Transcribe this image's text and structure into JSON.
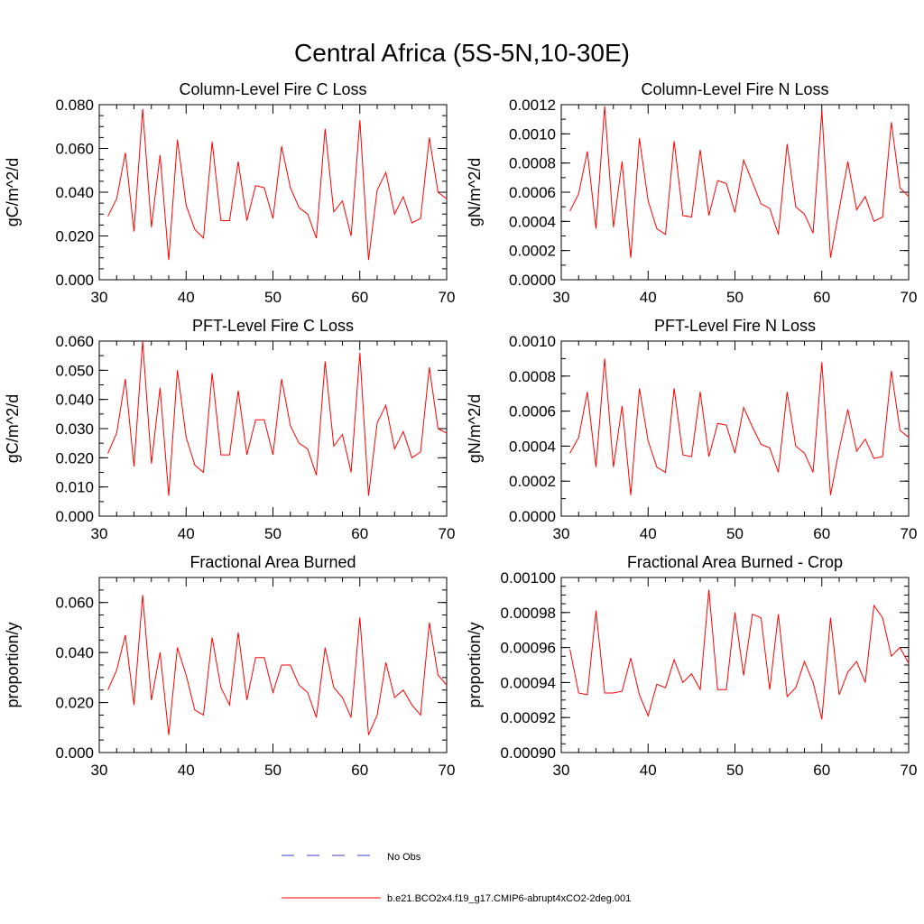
{
  "figure_title": "Central Africa (5S-5N,10-30E)",
  "legend": {
    "obs_label": "No Obs",
    "obs_color": "#3b3bd9",
    "model_label": "b.e21.BCO2x4.f19_g17.CMIP6-abrupt4xCO2-2deg.001",
    "model_color": "#ff0000"
  },
  "chart_data": [
    {
      "type": "line",
      "title": "Column-Level Fire C Loss",
      "ylabel": "gC/m^2/d",
      "xlim": [
        30,
        70
      ],
      "ylim": [
        0,
        0.08
      ],
      "ytick_step": 0.02,
      "yminor_step": 0.005,
      "ytick_decimals": 3,
      "xticks": [
        30,
        40,
        50,
        60,
        70
      ],
      "ytick_labels": [
        "0.000",
        "0.020",
        "0.040",
        "0.060",
        "0.080"
      ],
      "xtick_labels": [
        "30",
        "40",
        "50",
        "60",
        "70"
      ],
      "x": [
        31,
        32,
        33,
        34,
        35,
        36,
        37,
        38,
        39,
        40,
        41,
        42,
        43,
        44,
        45,
        46,
        47,
        48,
        49,
        50,
        51,
        52,
        53,
        54,
        55,
        56,
        57,
        58,
        59,
        60,
        61,
        62,
        63,
        64,
        65,
        66,
        67,
        68,
        69,
        70
      ],
      "values": [
        0.029,
        0.037,
        0.058,
        0.022,
        0.078,
        0.024,
        0.057,
        0.009,
        0.064,
        0.034,
        0.023,
        0.019,
        0.063,
        0.027,
        0.027,
        0.054,
        0.027,
        0.043,
        0.042,
        0.028,
        0.061,
        0.042,
        0.033,
        0.03,
        0.019,
        0.069,
        0.031,
        0.036,
        0.02,
        0.073,
        0.009,
        0.041,
        0.049,
        0.03,
        0.038,
        0.026,
        0.028,
        0.065,
        0.04,
        0.037
      ]
    },
    {
      "type": "line",
      "title": "Column-Level Fire N Loss",
      "ylabel": "gN/m^2/d",
      "xlim": [
        30,
        70
      ],
      "ylim": [
        0,
        0.0012
      ],
      "ytick_step": 0.0002,
      "yminor_step": 0.0001,
      "ytick_decimals": 4,
      "xticks": [
        30,
        40,
        50,
        60,
        70
      ],
      "ytick_labels": [
        "0.0000",
        "0.0002",
        "0.0004",
        "0.0006",
        "0.0008",
        "0.0010",
        "0.0012"
      ],
      "xtick_labels": [
        "30",
        "40",
        "50",
        "60",
        "70"
      ],
      "x": [
        31,
        32,
        33,
        34,
        35,
        36,
        37,
        38,
        39,
        40,
        41,
        42,
        43,
        44,
        45,
        46,
        47,
        48,
        49,
        50,
        51,
        52,
        53,
        54,
        55,
        56,
        57,
        58,
        59,
        60,
        61,
        62,
        63,
        64,
        65,
        66,
        67,
        68,
        69,
        70
      ],
      "values": [
        0.00047,
        0.00059,
        0.00088,
        0.00035,
        0.00119,
        0.00036,
        0.00081,
        0.00015,
        0.00097,
        0.00054,
        0.00035,
        0.00031,
        0.00095,
        0.00044,
        0.00043,
        0.00089,
        0.00044,
        0.00068,
        0.00066,
        0.00046,
        0.00082,
        0.00067,
        0.00052,
        0.00049,
        0.00031,
        0.00093,
        0.0005,
        0.00045,
        0.00032,
        0.00116,
        0.00015,
        0.00048,
        0.00081,
        0.00048,
        0.00057,
        0.0004,
        0.00043,
        0.00108,
        0.00063,
        0.00057
      ]
    },
    {
      "type": "line",
      "title": "PFT-Level Fire C Loss",
      "ylabel": "gC/m^2/d",
      "xlim": [
        30,
        70
      ],
      "ylim": [
        0,
        0.06
      ],
      "ytick_step": 0.01,
      "yminor_step": 0.005,
      "ytick_decimals": 3,
      "xticks": [
        30,
        40,
        50,
        60,
        70
      ],
      "ytick_labels": [
        "0.000",
        "0.010",
        "0.020",
        "0.030",
        "0.040",
        "0.050",
        "0.060"
      ],
      "xtick_labels": [
        "30",
        "40",
        "50",
        "60",
        "70"
      ],
      "x": [
        31,
        32,
        33,
        34,
        35,
        36,
        37,
        38,
        39,
        40,
        41,
        42,
        43,
        44,
        45,
        46,
        47,
        48,
        49,
        50,
        51,
        52,
        53,
        54,
        55,
        56,
        57,
        58,
        59,
        60,
        61,
        62,
        63,
        64,
        65,
        66,
        67,
        68,
        69,
        70
      ],
      "values": [
        0.0215,
        0.0285,
        0.047,
        0.017,
        0.06,
        0.018,
        0.044,
        0.007,
        0.05,
        0.027,
        0.0175,
        0.015,
        0.049,
        0.021,
        0.021,
        0.043,
        0.021,
        0.033,
        0.033,
        0.021,
        0.047,
        0.031,
        0.025,
        0.023,
        0.014,
        0.053,
        0.024,
        0.028,
        0.015,
        0.056,
        0.007,
        0.032,
        0.038,
        0.023,
        0.029,
        0.02,
        0.022,
        0.051,
        0.03,
        0.0285
      ]
    },
    {
      "type": "line",
      "title": "PFT-Level Fire N Loss",
      "ylabel": "gN/m^2/d",
      "xlim": [
        30,
        70
      ],
      "ylim": [
        0,
        0.001
      ],
      "ytick_step": 0.0002,
      "yminor_step": 0.0001,
      "ytick_decimals": 4,
      "xticks": [
        30,
        40,
        50,
        60,
        70
      ],
      "ytick_labels": [
        "0.0000",
        "0.0002",
        "0.0004",
        "0.0006",
        "0.0008",
        "0.0010"
      ],
      "xtick_labels": [
        "30",
        "40",
        "50",
        "60",
        "70"
      ],
      "x": [
        31,
        32,
        33,
        34,
        35,
        36,
        37,
        38,
        39,
        40,
        41,
        42,
        43,
        44,
        45,
        46,
        47,
        48,
        49,
        50,
        51,
        52,
        53,
        54,
        55,
        56,
        57,
        58,
        59,
        60,
        61,
        62,
        63,
        64,
        65,
        66,
        67,
        68,
        69,
        70
      ],
      "values": [
        0.00036,
        0.00045,
        0.00071,
        0.00028,
        0.0009,
        0.00028,
        0.00063,
        0.00012,
        0.00073,
        0.00043,
        0.00028,
        0.00025,
        0.00073,
        0.00035,
        0.00034,
        0.00071,
        0.00034,
        0.00053,
        0.00052,
        0.00036,
        0.00062,
        0.00051,
        0.00041,
        0.00039,
        0.00025,
        0.00071,
        0.0004,
        0.00036,
        0.00025,
        0.00088,
        0.00012,
        0.00038,
        0.00061,
        0.00037,
        0.00044,
        0.00033,
        0.00034,
        0.00083,
        0.00049,
        0.00045
      ]
    },
    {
      "type": "line",
      "title": "Fractional Area Burned",
      "ylabel": "proportion/y",
      "xlim": [
        30,
        70
      ],
      "ylim": [
        0,
        0.07
      ],
      "ytick_step": 0.02,
      "yminor_step": 0.005,
      "ytick_decimals": 3,
      "xticks": [
        30,
        40,
        50,
        60,
        70
      ],
      "ytick_labels": [
        "0.000",
        "0.020",
        "0.040",
        "0.060"
      ],
      "xtick_labels": [
        "30",
        "40",
        "50",
        "60",
        "70"
      ],
      "x": [
        31,
        32,
        33,
        34,
        35,
        36,
        37,
        38,
        39,
        40,
        41,
        42,
        43,
        44,
        45,
        46,
        47,
        48,
        49,
        50,
        51,
        52,
        53,
        54,
        55,
        56,
        57,
        58,
        59,
        60,
        61,
        62,
        63,
        64,
        65,
        66,
        67,
        68,
        69,
        70
      ],
      "values": [
        0.025,
        0.033,
        0.047,
        0.019,
        0.063,
        0.021,
        0.04,
        0.007,
        0.042,
        0.031,
        0.017,
        0.015,
        0.046,
        0.026,
        0.019,
        0.048,
        0.021,
        0.038,
        0.038,
        0.024,
        0.035,
        0.035,
        0.027,
        0.024,
        0.014,
        0.042,
        0.026,
        0.022,
        0.014,
        0.054,
        0.007,
        0.015,
        0.036,
        0.022,
        0.025,
        0.019,
        0.015,
        0.052,
        0.031,
        0.027
      ]
    },
    {
      "type": "line",
      "title": "Fractional Area Burned - Crop",
      "ylabel": "proportion/y",
      "xlim": [
        30,
        70
      ],
      "ylim": [
        0.0009,
        0.001
      ],
      "ytick_step": 2e-05,
      "yminor_step": 5e-06,
      "ytick_decimals": 5,
      "xticks": [
        30,
        40,
        50,
        60,
        70
      ],
      "ytick_labels": [
        "0.00090",
        "0.00092",
        "0.00094",
        "0.00096",
        "0.00098",
        "0.00100"
      ],
      "xtick_labels": [
        "30",
        "40",
        "50",
        "60",
        "70"
      ],
      "x": [
        31,
        32,
        33,
        34,
        35,
        36,
        37,
        38,
        39,
        40,
        41,
        42,
        43,
        44,
        45,
        46,
        47,
        48,
        49,
        50,
        51,
        52,
        53,
        54,
        55,
        56,
        57,
        58,
        59,
        60,
        61,
        62,
        63,
        64,
        65,
        66,
        67,
        68,
        69,
        70
      ],
      "values": [
        0.000959,
        0.000934,
        0.000933,
        0.000981,
        0.000934,
        0.000934,
        0.000935,
        0.000954,
        0.000933,
        0.000921,
        0.000939,
        0.000937,
        0.000953,
        0.00094,
        0.000945,
        0.000936,
        0.000993,
        0.000936,
        0.000936,
        0.00098,
        0.000944,
        0.000979,
        0.000977,
        0.000936,
        0.000979,
        0.000932,
        0.000937,
        0.000952,
        0.00094,
        0.000919,
        0.000977,
        0.000933,
        0.000946,
        0.000952,
        0.00094,
        0.000984,
        0.000977,
        0.000955,
        0.00096,
        0.000951
      ]
    }
  ]
}
